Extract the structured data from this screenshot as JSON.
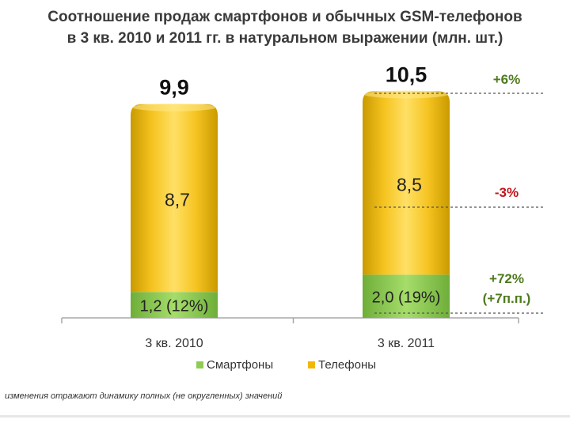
{
  "title_line1": "Соотношение продаж смартфонов и обычных GSM-телефонов",
  "title_line2": "в 3 кв. 2010 и 2011 гг. в натуральном выражении (млн. шт.)",
  "footnote": "изменения отражают динамику полных (не округленных) значений",
  "colors": {
    "smartphones": "#8fcc52",
    "phones": "#f2b705",
    "phones_dark": "#b88800",
    "change_up": "#4f7a1f",
    "change_down": "#c0161e"
  },
  "chart_data": {
    "type": "bar",
    "stacked": true,
    "title": "Соотношение продаж смартфонов и обычных GSM-телефонов в 3 кв. 2010 и 2011 гг. в натуральном выражении (млн. шт.)",
    "unit": "млн. шт.",
    "categories": [
      "3 кв. 2010",
      "3 кв. 2011"
    ],
    "series": [
      {
        "name": "Смартфоны",
        "values": [
          1.2,
          2.0
        ],
        "labels": [
          "1,2 (12%)",
          "2,0 (19%)"
        ]
      },
      {
        "name": "Телефоны",
        "values": [
          8.7,
          8.5
        ],
        "labels": [
          "8,7",
          "8,5"
        ]
      }
    ],
    "totals": [
      9.9,
      10.5
    ],
    "total_labels": [
      "9,9",
      "10,5"
    ],
    "changes": [
      {
        "series": "total",
        "text": "+6%"
      },
      {
        "series": "Телефоны",
        "text": "-3%"
      },
      {
        "series": "Смартфоны",
        "text": "+72%",
        "subtext": "(+7п.п.)"
      }
    ],
    "legend": [
      "Смартфоны",
      "Телефоны"
    ],
    "legend_position": "bottom"
  }
}
